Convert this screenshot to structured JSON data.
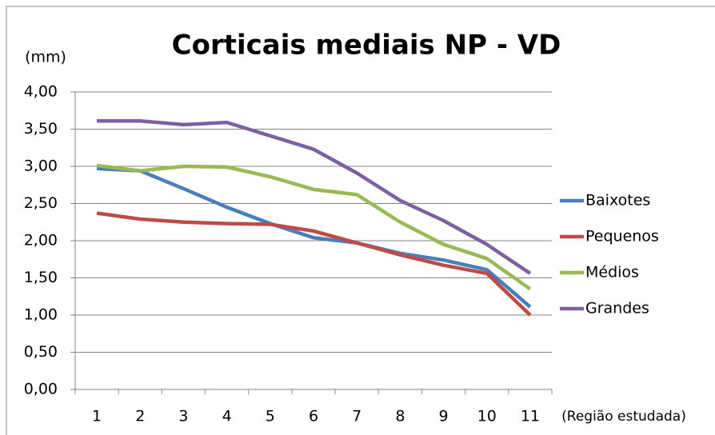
{
  "chart_data": {
    "type": "line",
    "title": "Corticais mediais NP - VD",
    "y_label": "(mm)",
    "x_label": "(Região estudada)",
    "categories": [
      "1",
      "2",
      "3",
      "4",
      "5",
      "6",
      "7",
      "8",
      "9",
      "10",
      "11"
    ],
    "series": [
      {
        "name": "Baixotes",
        "color": "#4a7ebb",
        "values": [
          2.97,
          2.94,
          2.7,
          2.45,
          2.23,
          2.04,
          1.97,
          1.83,
          1.74,
          1.61,
          1.11
        ]
      },
      {
        "name": "Pequenos",
        "color": "#be4b48",
        "values": [
          2.37,
          2.29,
          2.25,
          2.23,
          2.22,
          2.13,
          1.97,
          1.81,
          1.67,
          1.56,
          1.0
        ]
      },
      {
        "name": "Médios",
        "color": "#98b954",
        "values": [
          3.01,
          2.94,
          3.0,
          2.99,
          2.86,
          2.69,
          2.62,
          2.25,
          1.95,
          1.76,
          1.35
        ]
      },
      {
        "name": "Grandes",
        "color": "#7d60a0",
        "values": [
          3.61,
          3.61,
          3.56,
          3.59,
          3.41,
          3.23,
          2.91,
          2.54,
          2.27,
          1.95,
          1.56
        ]
      }
    ],
    "ylim": [
      0,
      4
    ],
    "yticks": [
      {
        "value": 0,
        "label": "0,00"
      },
      {
        "value": 0.5,
        "label": "0,50"
      },
      {
        "value": 1,
        "label": "1,00"
      },
      {
        "value": 1.5,
        "label": "1,50"
      },
      {
        "value": 2,
        "label": "2,00"
      },
      {
        "value": 2.5,
        "label": "2,50"
      },
      {
        "value": 3,
        "label": "3,00"
      },
      {
        "value": 3.5,
        "label": "3,50"
      },
      {
        "value": 4,
        "label": "4,00"
      }
    ],
    "grid": true,
    "legend": "right"
  }
}
